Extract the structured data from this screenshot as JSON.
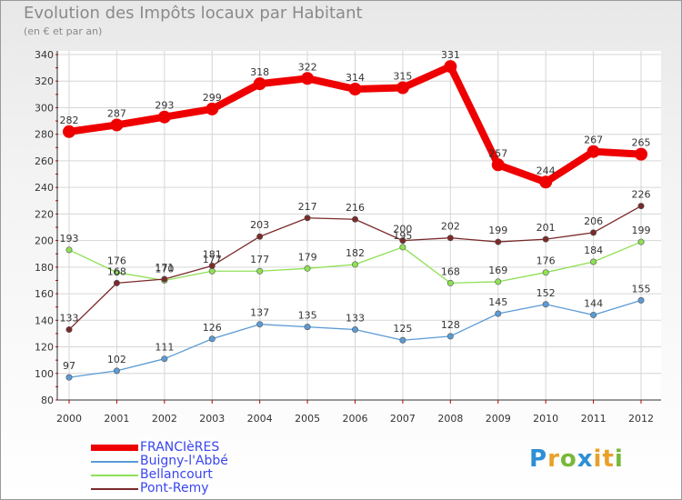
{
  "title": "Evolution des Impôts locaux par Habitant",
  "subtitle": "(en € et par an)",
  "logo": {
    "text": "Proxiti",
    "colors": [
      "#2e8fd6",
      "#e8a12a",
      "#78b83a"
    ]
  },
  "chart_data": {
    "type": "line",
    "title": "Evolution des Impôts locaux par Habitant",
    "subtitle": "(en € et par an)",
    "xlabel": "",
    "ylabel": "",
    "ylim": [
      80,
      340
    ],
    "yticks": [
      80,
      100,
      120,
      140,
      160,
      180,
      200,
      220,
      240,
      260,
      280,
      300,
      320,
      340
    ],
    "grid": true,
    "legend_position": "bottom-left",
    "categories": [
      "2000",
      "2001",
      "2002",
      "2003",
      "2004",
      "2005",
      "2006",
      "2007",
      "2008",
      "2009",
      "2010",
      "2011",
      "2012"
    ],
    "series": [
      {
        "name": "FRANCIèRES",
        "color": "#ee0000",
        "values": [
          282,
          287,
          293,
          299,
          318,
          322,
          314,
          315,
          331,
          257,
          244,
          267,
          265
        ]
      },
      {
        "name": "Buigny-l'Abbé",
        "color": "#5b9bd5",
        "values": [
          97,
          102,
          111,
          126,
          137,
          135,
          133,
          125,
          128,
          145,
          152,
          144,
          155
        ]
      },
      {
        "name": "Bellancourt",
        "color": "#8fe055",
        "values": [
          193,
          176,
          170,
          177,
          177,
          179,
          182,
          195,
          168,
          169,
          176,
          184,
          199
        ]
      },
      {
        "name": "Pont-Remy",
        "color": "#7a2a2a",
        "values": [
          133,
          168,
          171,
          181,
          203,
          217,
          216,
          200,
          202,
          199,
          201,
          206,
          226
        ]
      }
    ]
  }
}
